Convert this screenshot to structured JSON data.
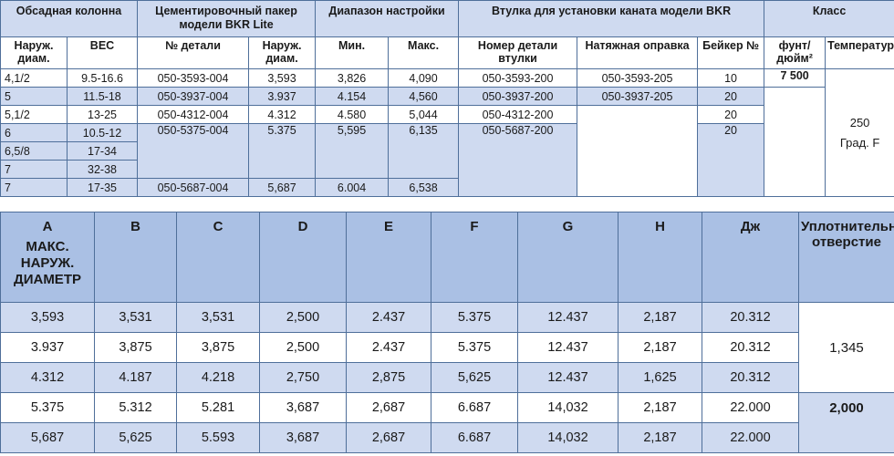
{
  "top_table": {
    "groups": [
      "Обсадная колонна",
      "Цементировочный пакер модели BKR Lite",
      "Диапазон настройки",
      "Втулка для установки каната модели BKR",
      "Класс"
    ],
    "subheaders": [
      "Наруж. диам.",
      "ВЕС",
      "№ детали",
      "Наруж. диам.",
      "Мин.",
      "Макс.",
      "Номер детали втулки",
      "Натяжная оправка",
      "Бейкер №",
      "фунт/дюйм²",
      "Температура"
    ],
    "rows": [
      [
        "4,1/2",
        "9.5-16.6",
        "050-3593-004",
        "3,593",
        "3,826",
        "4,090",
        "050-3593-200",
        "050-3593-205",
        "10"
      ],
      [
        "5",
        "11.5-18",
        "050-3937-004",
        "3.937",
        "4.154",
        "4,560",
        "050-3937-200",
        "050-3937-205",
        "20"
      ],
      [
        "5,1/2",
        "13-25",
        "050-4312-004",
        "4.312",
        "4.580",
        "5,044",
        "050-4312-200",
        "",
        "20"
      ],
      [
        "6",
        "10.5-12",
        "050-5375-004",
        "5.375",
        "5,595",
        "6,135",
        "050-5687-200",
        "",
        "20"
      ],
      [
        "6,5/8",
        "17-34"
      ],
      [
        "7",
        "32-38"
      ],
      [
        "7",
        "17-35",
        "050-5687-004",
        "5,687",
        "6.004",
        "6,538"
      ]
    ],
    "pressure": "7 500",
    "temperature": "250",
    "temperature_unit": "Град. F"
  },
  "bottom_table": {
    "headers": [
      "A",
      "B",
      "C",
      "D",
      "E",
      "F",
      "G",
      "H",
      "Дж",
      "Уплотнительное отверстие"
    ],
    "header_a_sub": "МАКС. НАРУЖ. ДИАМЕТР",
    "rows": [
      [
        "3,593",
        "3,531",
        "3,531",
        "2,500",
        "2.437",
        "5.375",
        "12.437",
        "2,187",
        "20.312"
      ],
      [
        "3.937",
        "3,875",
        "3,875",
        "2,500",
        "2.437",
        "5.375",
        "12.437",
        "2,187",
        "20.312"
      ],
      [
        "4.312",
        "4.187",
        "4.218",
        "2,750",
        "2,875",
        "5,625",
        "12.437",
        "1,625",
        "20.312"
      ],
      [
        "5.375",
        "5.312",
        "5.281",
        "3,687",
        "2,687",
        "6.687",
        "14,032",
        "2,187",
        "22.000"
      ],
      [
        "5,687",
        "5,625",
        "5.593",
        "3,687",
        "2,687",
        "6.687",
        "14,032",
        "2,187",
        "22.000"
      ]
    ],
    "seal_bore": [
      "1,345",
      "2,000"
    ]
  }
}
